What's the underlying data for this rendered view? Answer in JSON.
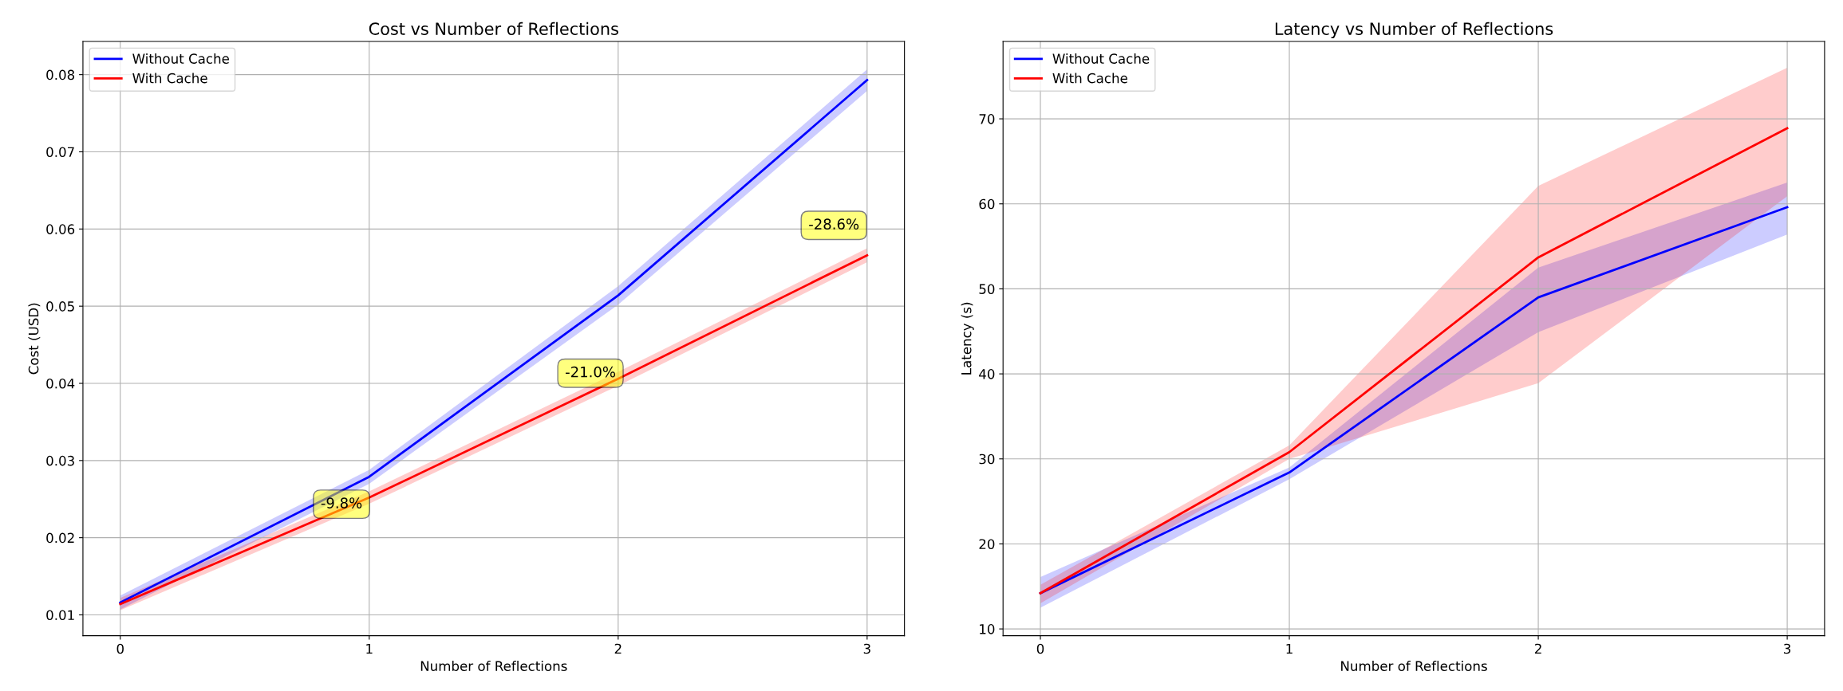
{
  "chart_data": [
    {
      "type": "line",
      "title": "Cost vs Number of Reflections",
      "xlabel": "Number of Reflections",
      "ylabel": "Cost (USD)",
      "x": [
        0,
        1,
        2,
        3
      ],
      "xlim": [
        -0.15,
        3.15
      ],
      "xticks": [
        0,
        1,
        2,
        3
      ],
      "ylim": [
        0.0073,
        0.0843
      ],
      "yticks": [
        0.01,
        0.02,
        0.03,
        0.04,
        0.05,
        0.06,
        0.07,
        0.08
      ],
      "grid": true,
      "legend": "top left",
      "series": [
        {
          "name": "Without Cache",
          "color": "#0000ff",
          "values": [
            0.0116,
            0.0279,
            0.0514,
            0.0793
          ],
          "lower": [
            0.0107,
            0.027,
            0.0502,
            0.0779
          ],
          "upper": [
            0.0125,
            0.0288,
            0.0526,
            0.0807
          ]
        },
        {
          "name": "With Cache",
          "color": "#ff0000",
          "values": [
            0.0114,
            0.0252,
            0.0406,
            0.0566
          ],
          "lower": [
            0.0106,
            0.0244,
            0.0397,
            0.0557
          ],
          "upper": [
            0.0122,
            0.026,
            0.0415,
            0.0575
          ]
        }
      ],
      "annotations": [
        "-9.8%",
        "-21.0%",
        "-28.6%"
      ]
    },
    {
      "type": "line",
      "title": "Latency vs Number of Reflections",
      "xlabel": "Number of Reflections",
      "ylabel": "Latency (s)",
      "x": [
        0,
        1,
        2,
        3
      ],
      "xlim": [
        -0.15,
        3.15
      ],
      "xticks": [
        0,
        1,
        2,
        3
      ],
      "ylim": [
        9.2,
        79.1
      ],
      "yticks": [
        10,
        20,
        30,
        40,
        50,
        60,
        70
      ],
      "grid": true,
      "legend": "top left",
      "series": [
        {
          "name": "Without Cache",
          "color": "#0000ff",
          "values": [
            14.2,
            28.4,
            49.0,
            59.6
          ],
          "lower": [
            12.5,
            27.6,
            44.9,
            56.4
          ],
          "upper": [
            16.1,
            29.0,
            52.5,
            62.5
          ]
        },
        {
          "name": "With Cache",
          "color": "#ff0000",
          "values": [
            14.2,
            30.8,
            53.7,
            68.9
          ],
          "lower": [
            13.0,
            30.0,
            38.9,
            60.9
          ],
          "upper": [
            15.2,
            31.6,
            62.1,
            76.0
          ]
        }
      ]
    }
  ]
}
